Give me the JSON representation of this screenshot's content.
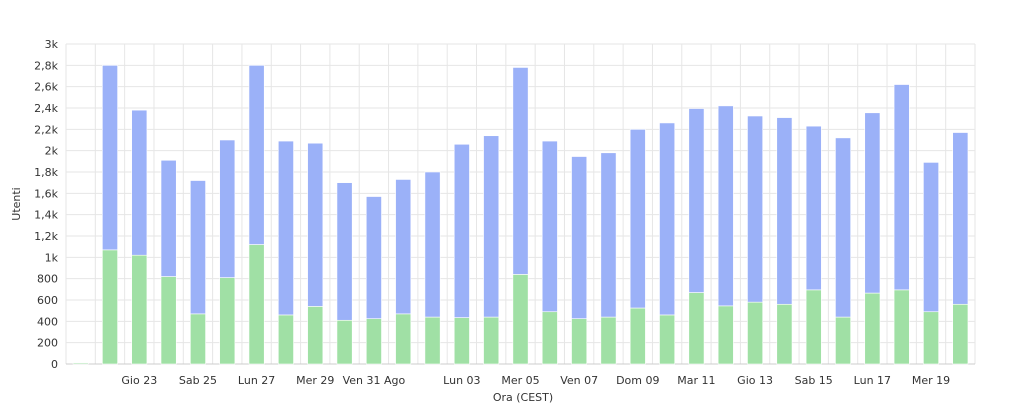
{
  "chart_data": {
    "type": "bar",
    "stacked": true,
    "xlabel": "Ora (CEST)",
    "ylabel": "Utenti",
    "ylim": [
      0,
      3000
    ],
    "y_ticks": [
      {
        "value": 0,
        "label": "0"
      },
      {
        "value": 200,
        "label": "200"
      },
      {
        "value": 400,
        "label": "400"
      },
      {
        "value": 600,
        "label": "600"
      },
      {
        "value": 800,
        "label": "800"
      },
      {
        "value": 1000,
        "label": "1k"
      },
      {
        "value": 1200,
        "label": "1,2k"
      },
      {
        "value": 1400,
        "label": "1,4k"
      },
      {
        "value": 1600,
        "label": "1,6k"
      },
      {
        "value": 1800,
        "label": "1,8k"
      },
      {
        "value": 2000,
        "label": "2k"
      },
      {
        "value": 2200,
        "label": "2,2k"
      },
      {
        "value": 2400,
        "label": "2,4k"
      },
      {
        "value": 2600,
        "label": "2,6k"
      },
      {
        "value": 2800,
        "label": "2,8k"
      },
      {
        "value": 3000,
        "label": "3k"
      }
    ],
    "x_tick_labels": [
      {
        "index": 2,
        "label": "Gio 23"
      },
      {
        "index": 4,
        "label": "Sab 25"
      },
      {
        "index": 6,
        "label": "Lun 27"
      },
      {
        "index": 8,
        "label": "Mer 29"
      },
      {
        "index": 10,
        "label": "Ven 31 Ago"
      },
      {
        "index": 13,
        "label": "Lun 03"
      },
      {
        "index": 15,
        "label": "Mer 05"
      },
      {
        "index": 17,
        "label": "Ven 07"
      },
      {
        "index": 19,
        "label": "Dom 09"
      },
      {
        "index": 21,
        "label": "Mar 11"
      },
      {
        "index": 23,
        "label": "Gio 13"
      },
      {
        "index": 25,
        "label": "Sab 15"
      },
      {
        "index": 27,
        "label": "Lun 17"
      },
      {
        "index": 29,
        "label": "Mer 19"
      }
    ],
    "series": [
      {
        "color": "#a0e0a5",
        "values": [
          10,
          1070,
          1020,
          820,
          470,
          810,
          1120,
          460,
          540,
          410,
          425,
          470,
          440,
          435,
          440,
          840,
          490,
          425,
          440,
          525,
          460,
          670,
          545,
          580,
          560,
          695,
          440,
          665,
          695,
          490,
          560
        ]
      },
      {
        "color": "#9bb1f8",
        "values": [
          0,
          1730,
          1360,
          1090,
          1250,
          1290,
          1680,
          1630,
          1530,
          1290,
          1145,
          1260,
          1360,
          1625,
          1700,
          1940,
          1600,
          1520,
          1540,
          1675,
          1800,
          1725,
          1875,
          1745,
          1750,
          1535,
          1680,
          1690,
          1925,
          1400,
          1610
        ]
      }
    ]
  }
}
